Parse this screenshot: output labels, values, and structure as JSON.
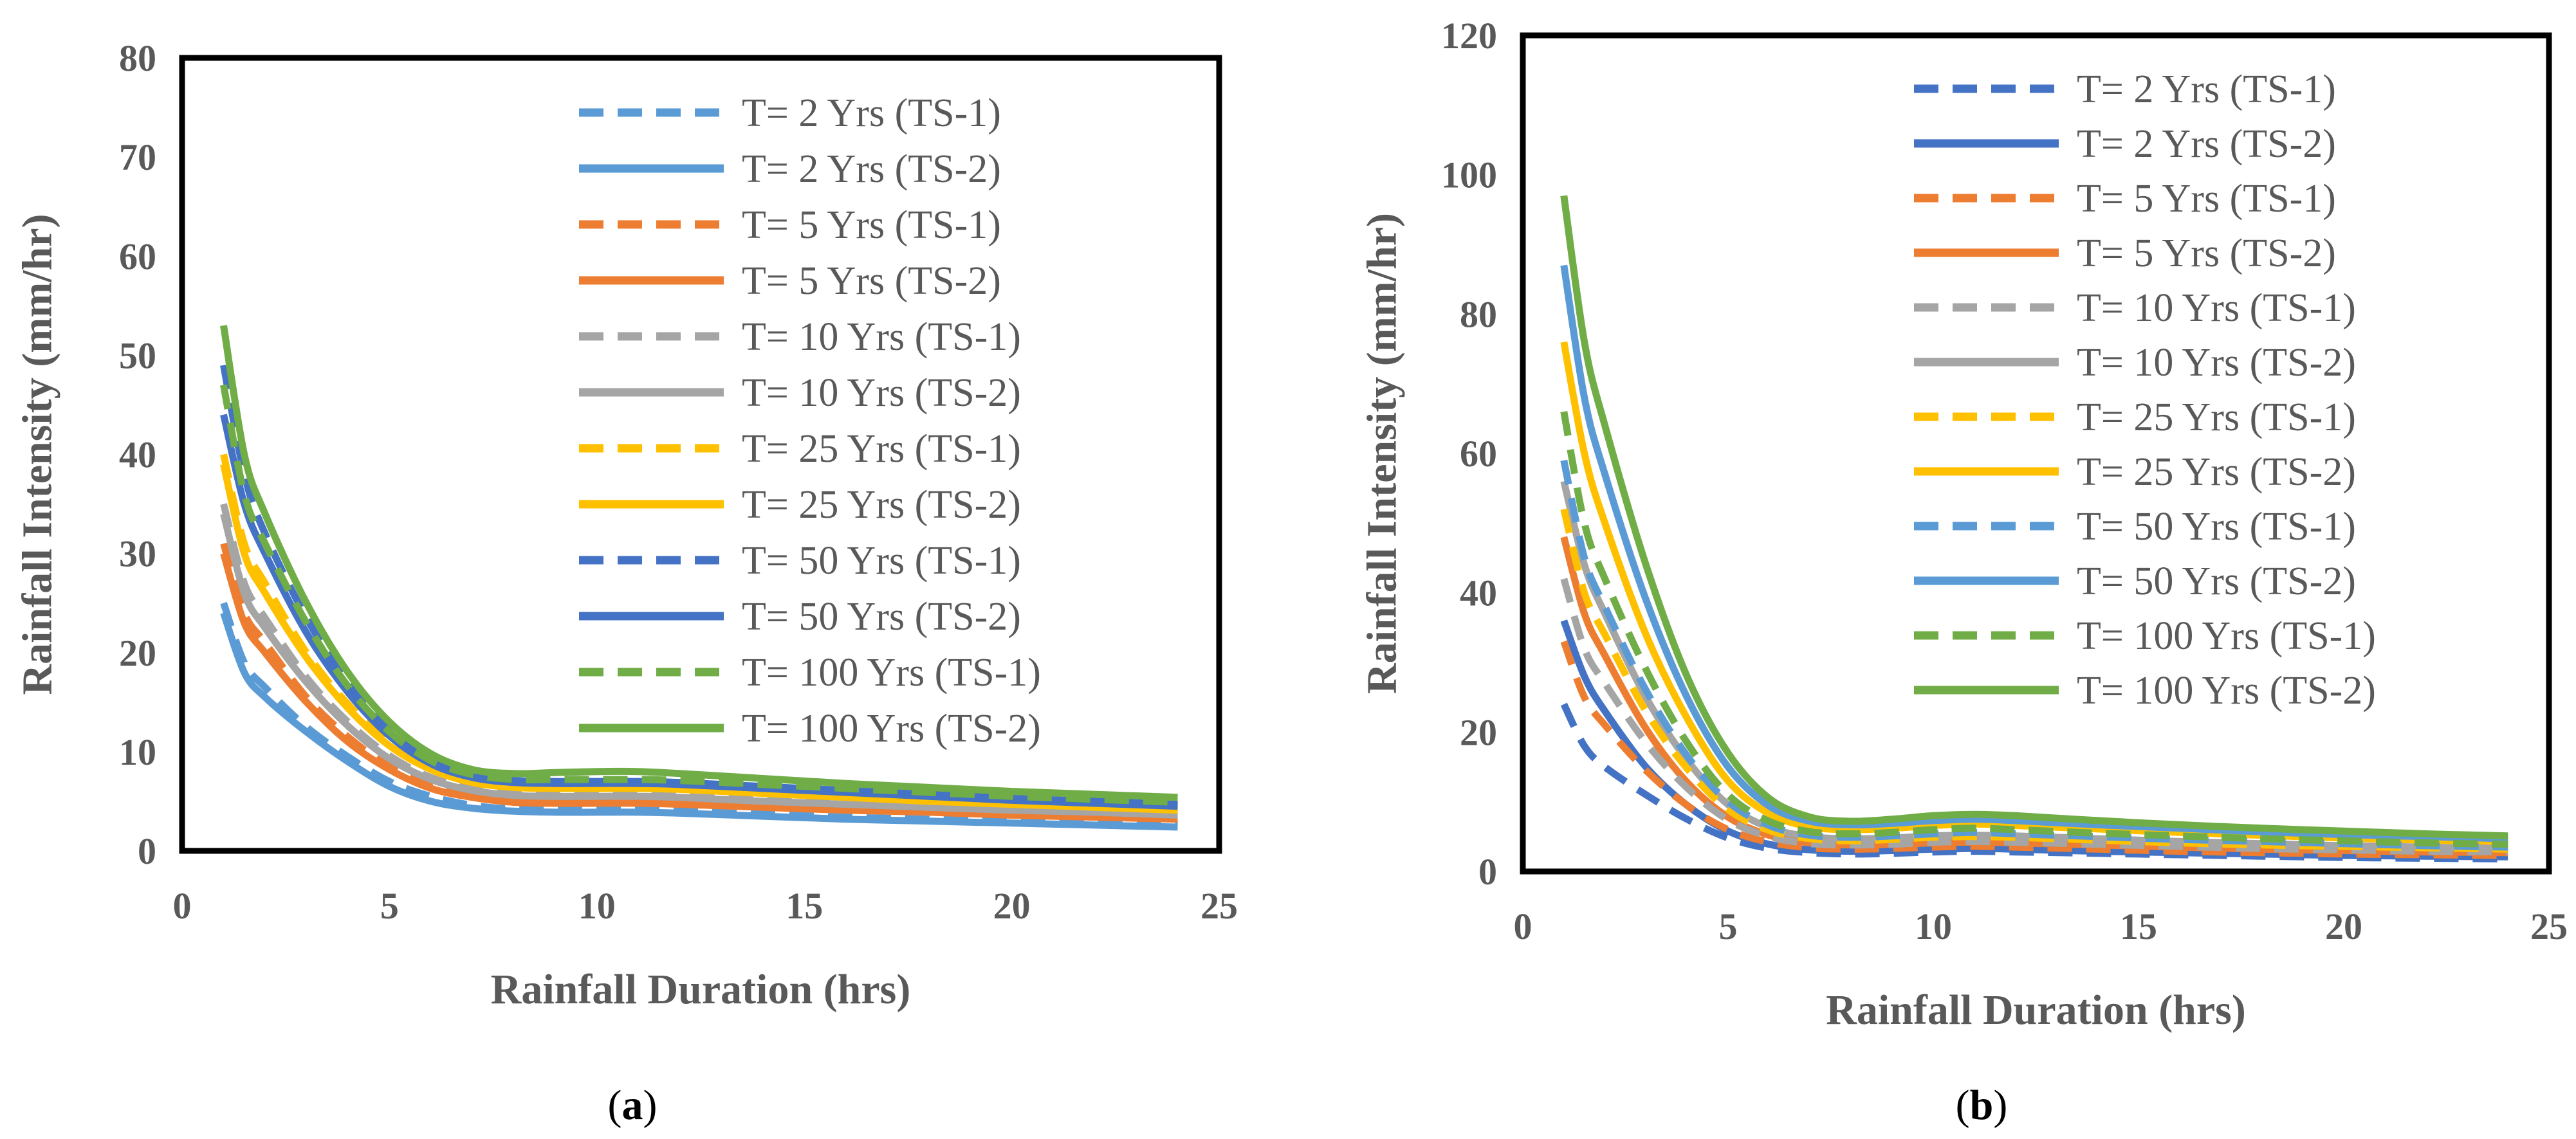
{
  "chart_data": [
    {
      "type": "line",
      "panel_label": {
        "open": "(",
        "letter": "a",
        "close": ")"
      },
      "xlabel": "Rainfall Duration (hrs)",
      "ylabel": "Rainfall Intensity (mm/hr)",
      "xlim": [
        0,
        25
      ],
      "ylim": [
        0,
        80
      ],
      "xticks": [
        "0",
        "5",
        "10",
        "15",
        "20",
        "25"
      ],
      "yticks": [
        "0",
        "10",
        "20",
        "30",
        "40",
        "50",
        "60",
        "70",
        "80"
      ],
      "grid": false,
      "legend_position": "top-right",
      "x": [
        1,
        1.5,
        2,
        3,
        4,
        5,
        6,
        7,
        8,
        9,
        10,
        11,
        12,
        14,
        16,
        18,
        20,
        22,
        24
      ],
      "series": [
        {
          "name": "T= 2 Yrs (TS-1)",
          "color": "#5B9BD5",
          "dash": true,
          "values": [
            25,
            19,
            16.5,
            12.5,
            9.5,
            7,
            5.5,
            4.6,
            4.2,
            4.1,
            4.1,
            4.1,
            4.0,
            3.7,
            3.4,
            3.2,
            3.0,
            2.8,
            2.6
          ]
        },
        {
          "name": "T= 2 Yrs (TS-2)",
          "color": "#5B9BD5",
          "dash": false,
          "values": [
            24,
            18,
            15.5,
            12,
            9,
            6.5,
            5.0,
            4.3,
            4.0,
            3.9,
            3.9,
            3.9,
            3.8,
            3.5,
            3.2,
            3.0,
            2.8,
            2.6,
            2.4
          ]
        },
        {
          "name": "T= 5 Yrs (TS-1)",
          "color": "#ED7D31",
          "dash": true,
          "values": [
            31,
            24,
            21,
            15.5,
            11.5,
            8.5,
            6.6,
            5.6,
            5.1,
            5.0,
            5.0,
            5.0,
            4.9,
            4.6,
            4.3,
            4.0,
            3.8,
            3.6,
            3.4
          ]
        },
        {
          "name": "T= 5 Yrs (TS-2)",
          "color": "#ED7D31",
          "dash": false,
          "values": [
            30,
            23,
            20,
            15,
            11,
            8.2,
            6.3,
            5.4,
            4.9,
            4.8,
            4.8,
            4.8,
            4.7,
            4.4,
            4.1,
            3.9,
            3.6,
            3.4,
            3.2
          ]
        },
        {
          "name": "T= 10 Yrs (TS-1)",
          "color": "#A5A5A5",
          "dash": true,
          "values": [
            35,
            27,
            23.5,
            17.5,
            13,
            9.6,
            7.4,
            6.3,
            5.8,
            5.7,
            5.7,
            5.7,
            5.6,
            5.2,
            4.9,
            4.6,
            4.3,
            4.1,
            3.8
          ]
        },
        {
          "name": "T= 10 Yrs (TS-2)",
          "color": "#A5A5A5",
          "dash": false,
          "values": [
            34,
            26,
            22.5,
            17,
            12.6,
            9.3,
            7.2,
            6.1,
            5.6,
            5.5,
            5.5,
            5.5,
            5.4,
            5.0,
            4.7,
            4.4,
            4.1,
            3.9,
            3.6
          ]
        },
        {
          "name": "T= 25 Yrs (TS-1)",
          "color": "#FFC000",
          "dash": true,
          "values": [
            40,
            31,
            27,
            20,
            14.8,
            10.9,
            8.4,
            7.1,
            6.6,
            6.5,
            6.5,
            6.5,
            6.4,
            6.0,
            5.6,
            5.2,
            4.9,
            4.6,
            4.3
          ]
        },
        {
          "name": "T= 25 Yrs (TS-2)",
          "color": "#FFC000",
          "dash": false,
          "values": [
            39,
            30,
            26,
            19.5,
            14.4,
            10.6,
            8.2,
            6.9,
            6.4,
            6.3,
            6.3,
            6.3,
            6.2,
            5.8,
            5.4,
            5.0,
            4.7,
            4.4,
            4.1
          ]
        },
        {
          "name": "T= 50 Yrs (TS-1)",
          "color": "#4472C4",
          "dash": true,
          "values": [
            49,
            38,
            32,
            23.5,
            17,
            12.2,
            9.2,
            7.6,
            7.1,
            7.0,
            7.0,
            7.0,
            6.9,
            6.5,
            6.1,
            5.7,
            5.3,
            5.0,
            4.7
          ]
        },
        {
          "name": "T= 50 Yrs (TS-2)",
          "color": "#4472C4",
          "dash": false,
          "values": [
            44,
            35,
            30,
            22,
            16,
            11.6,
            8.8,
            7.4,
            6.9,
            6.8,
            6.8,
            6.8,
            6.7,
            6.3,
            5.9,
            5.5,
            5.1,
            4.8,
            4.5
          ]
        },
        {
          "name": "T= 100 Yrs (TS-1)",
          "color": "#70AD47",
          "dash": true,
          "values": [
            47,
            36,
            31,
            23,
            16.6,
            12,
            9.1,
            7.7,
            7.2,
            7.2,
            7.2,
            7.2,
            7.1,
            6.7,
            6.3,
            5.9,
            5.5,
            5.2,
            4.9
          ]
        },
        {
          "name": "T= 100 Yrs (TS-2)",
          "color": "#70AD47",
          "dash": false,
          "values": [
            53,
            40,
            34,
            25,
            18,
            13,
            9.8,
            8.2,
            7.8,
            7.9,
            8.0,
            8.0,
            7.8,
            7.3,
            6.8,
            6.4,
            6.0,
            5.7,
            5.4
          ]
        }
      ]
    },
    {
      "type": "line",
      "panel_label": {
        "open": "(",
        "letter": "b",
        "close": ")"
      },
      "xlabel": "Rainfall Duration (hrs)",
      "ylabel": "Rainfall Intensity (mm/hr)",
      "xlim": [
        0,
        25
      ],
      "ylim": [
        0,
        120
      ],
      "xticks": [
        "0",
        "5",
        "10",
        "15",
        "20",
        "25"
      ],
      "yticks": [
        "0",
        "20",
        "40",
        "60",
        "80",
        "100",
        "120"
      ],
      "grid": false,
      "legend_position": "top-right",
      "x": [
        1,
        1.5,
        2,
        3,
        4,
        5,
        6,
        7,
        8,
        9,
        10,
        11,
        12,
        14,
        16,
        18,
        20,
        22,
        24
      ],
      "series": [
        {
          "name": "T= 2 Yrs (TS-1)",
          "color": "#4472C4",
          "dash": true,
          "values": [
            24,
            18,
            15,
            11,
            7.5,
            4.8,
            3.3,
            2.7,
            2.5,
            2.6,
            2.8,
            2.9,
            2.8,
            2.6,
            2.4,
            2.2,
            2.0,
            1.9,
            1.8
          ]
        },
        {
          "name": "T= 2 Yrs (TS-2)",
          "color": "#4472C4",
          "dash": false,
          "values": [
            36,
            28,
            23,
            15,
            9.5,
            5.8,
            3.9,
            3.1,
            2.9,
            3.0,
            3.2,
            3.3,
            3.2,
            2.9,
            2.7,
            2.5,
            2.3,
            2.2,
            2.1
          ]
        },
        {
          "name": "T= 5 Yrs (TS-1)",
          "color": "#ED7D31",
          "dash": true,
          "values": [
            33,
            25,
            21,
            14.5,
            9.5,
            6.0,
            4.2,
            3.4,
            3.2,
            3.3,
            3.5,
            3.6,
            3.5,
            3.2,
            2.9,
            2.7,
            2.5,
            2.4,
            2.3
          ]
        },
        {
          "name": "T= 5 Yrs (TS-2)",
          "color": "#ED7D31",
          "dash": false,
          "values": [
            48,
            37,
            31,
            20.5,
            12.8,
            7.8,
            5.2,
            4.1,
            3.8,
            3.9,
            4.1,
            4.2,
            4.1,
            3.8,
            3.5,
            3.2,
            3.0,
            2.8,
            2.7
          ]
        },
        {
          "name": "T= 10 Yrs (TS-1)",
          "color": "#A5A5A5",
          "dash": true,
          "values": [
            42,
            32,
            27,
            18.5,
            12,
            7.4,
            5.0,
            4.0,
            3.8,
            3.9,
            4.2,
            4.3,
            4.2,
            3.9,
            3.6,
            3.3,
            3.1,
            2.9,
            2.8
          ]
        },
        {
          "name": "T= 10 Yrs (TS-2)",
          "color": "#A5A5A5",
          "dash": false,
          "values": [
            56,
            44,
            37,
            25,
            16,
            9.6,
            6.3,
            5.0,
            4.7,
            4.8,
            5.1,
            5.2,
            5.1,
            4.7,
            4.3,
            4.0,
            3.7,
            3.5,
            3.3
          ]
        },
        {
          "name": "T= 25 Yrs (TS-1)",
          "color": "#FFC000",
          "dash": true,
          "values": [
            52,
            40,
            34,
            23,
            14.8,
            8.9,
            5.9,
            4.7,
            4.4,
            4.6,
            4.9,
            5.0,
            4.9,
            4.5,
            4.1,
            3.8,
            3.6,
            3.4,
            3.2
          ]
        },
        {
          "name": "T= 25 Yrs (TS-2)",
          "color": "#FFC000",
          "dash": false,
          "values": [
            76,
            60,
            50,
            34,
            22,
            13,
            8.3,
            6.4,
            6.0,
            6.2,
            6.6,
            6.8,
            6.6,
            6.1,
            5.6,
            5.2,
            4.8,
            4.5,
            4.3
          ]
        },
        {
          "name": "T= 50 Yrs (TS-1)",
          "color": "#5B9BD5",
          "dash": true,
          "values": [
            59,
            45,
            38,
            26,
            16.6,
            10,
            6.6,
            5.2,
            4.9,
            5.1,
            5.4,
            5.6,
            5.4,
            5.0,
            4.6,
            4.3,
            4.0,
            3.7,
            3.5
          ]
        },
        {
          "name": "T= 50 Yrs (TS-2)",
          "color": "#5B9BD5",
          "dash": false,
          "values": [
            87,
            68,
            57,
            39,
            25,
            15,
            9.4,
            7.2,
            6.7,
            6.9,
            7.3,
            7.5,
            7.3,
            6.7,
            6.2,
            5.7,
            5.3,
            5.0,
            4.7
          ]
        },
        {
          "name": "T= 100 Yrs (TS-1)",
          "color": "#70AD47",
          "dash": true,
          "values": [
            66,
            50,
            42,
            29,
            18.5,
            11,
            7.2,
            5.7,
            5.4,
            5.6,
            6.0,
            6.2,
            6.0,
            5.5,
            5.1,
            4.7,
            4.4,
            4.1,
            3.9
          ]
        },
        {
          "name": "T= 100 Yrs (TS-2)",
          "color": "#70AD47",
          "dash": false,
          "values": [
            97,
            76,
            64,
            44,
            28,
            17,
            10.5,
            7.8,
            7.2,
            7.5,
            8.0,
            8.2,
            8.0,
            7.3,
            6.7,
            6.2,
            5.8,
            5.4,
            5.1
          ]
        }
      ]
    }
  ]
}
